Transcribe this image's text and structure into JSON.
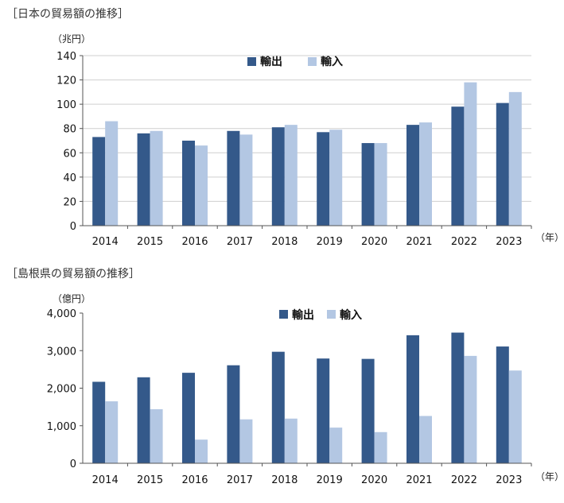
{
  "colors": {
    "export": "#34598a",
    "import": "#b3c7e3"
  },
  "chart_data": [
    {
      "type": "bar",
      "title": "［日本の貿易額の推移］",
      "unit": "（兆円）",
      "x_unit": "（年）",
      "categories": [
        "2014",
        "2015",
        "2016",
        "2017",
        "2018",
        "2019",
        "2020",
        "2021",
        "2022",
        "2023"
      ],
      "series": [
        {
          "name": "輸出",
          "values": [
            73,
            76,
            70,
            78,
            81,
            77,
            68,
            83,
            98,
            101
          ]
        },
        {
          "name": "輸入",
          "values": [
            86,
            78,
            66,
            75,
            83,
            79,
            68,
            85,
            118,
            110
          ]
        }
      ],
      "ylim": [
        0,
        140
      ],
      "yticks": [
        0,
        20,
        40,
        60,
        80,
        100,
        120,
        140
      ],
      "ytick_labels": [
        "0",
        "20",
        "40",
        "60",
        "80",
        "100",
        "120",
        "140"
      ],
      "grid": true,
      "legend": "top-center"
    },
    {
      "type": "bar",
      "title": "［島根県の貿易額の推移］",
      "unit": "（億円）",
      "x_unit": "（年）",
      "categories": [
        "2014",
        "2015",
        "2016",
        "2017",
        "2018",
        "2019",
        "2020",
        "2021",
        "2022",
        "2023"
      ],
      "series": [
        {
          "name": "輸出",
          "values": [
            2170,
            2290,
            2410,
            2610,
            2970,
            2790,
            2780,
            3410,
            3480,
            3110
          ]
        },
        {
          "name": "輸入",
          "values": [
            1650,
            1440,
            630,
            1170,
            1190,
            950,
            830,
            1260,
            2860,
            2470
          ]
        }
      ],
      "ylim": [
        0,
        4000
      ],
      "yticks": [
        0,
        1000,
        2000,
        3000,
        4000
      ],
      "ytick_labels": [
        "0",
        "1,000",
        "2,000",
        "3,000",
        "4,000"
      ],
      "grid": false,
      "legend": "top-right"
    }
  ]
}
